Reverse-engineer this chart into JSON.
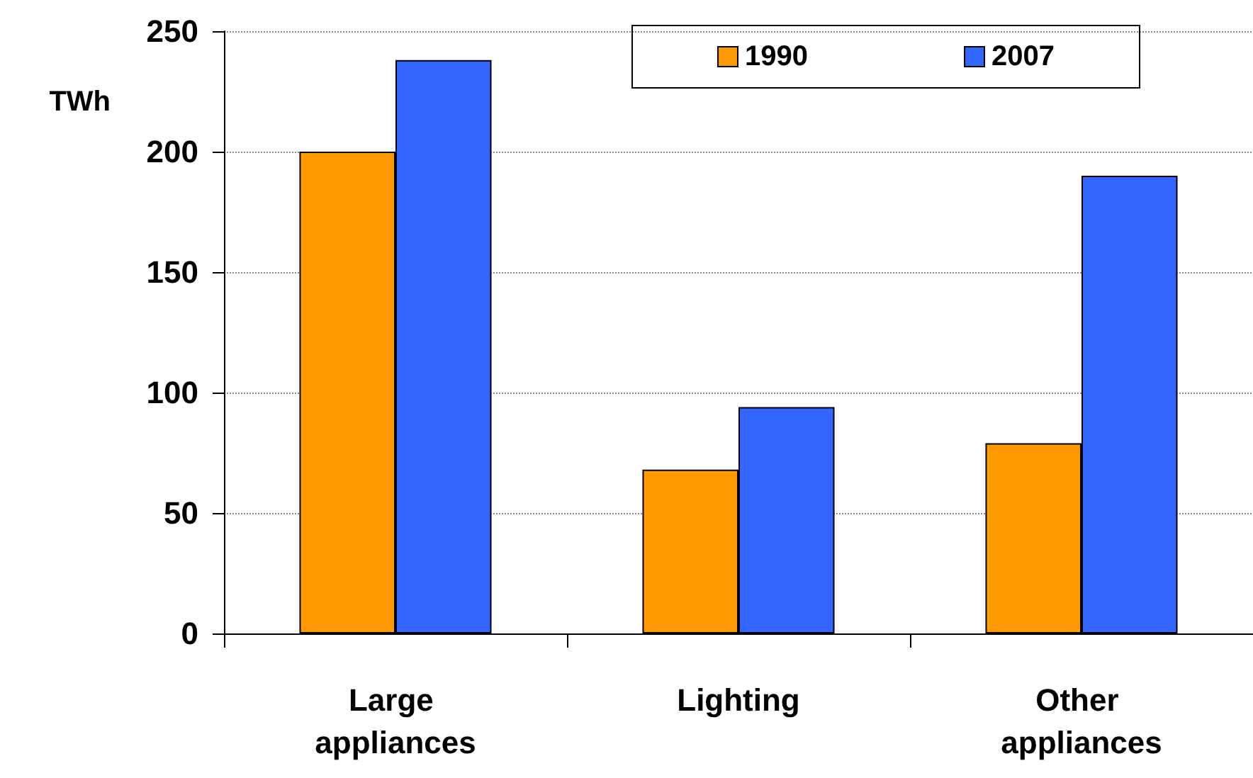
{
  "chart_data": {
    "type": "bar",
    "ylabel": "TWh",
    "categories": [
      "Large appliances",
      "Lighting",
      "Other appliances"
    ],
    "series": [
      {
        "name": "1990",
        "color": "#ff9900",
        "values": [
          200,
          68,
          79
        ]
      },
      {
        "name": "2007",
        "color": "#3366ff",
        "values": [
          238,
          94,
          190
        ]
      }
    ],
    "ylim": [
      0,
      250
    ],
    "yticks": [
      0,
      50,
      100,
      150,
      200,
      250
    ],
    "grid": "y",
    "legend": "top right"
  }
}
